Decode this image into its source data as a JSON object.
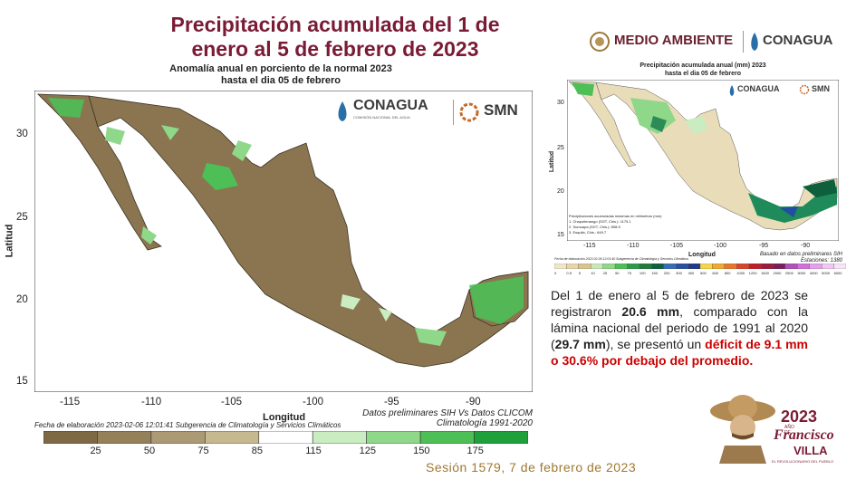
{
  "slide": {
    "title_line1": "Precipitación acumulada del 1 de",
    "title_line2": "enero al 5 de febrero de 2023",
    "session": "Sesión 1579, 7 de febrero de 2023"
  },
  "header_logos": {
    "medio_ambiente": "MEDIO AMBIENTE",
    "conagua": "CONAGUA"
  },
  "main_map": {
    "title_line1": "Anomalía anual en porciento de la normal 2023",
    "title_line2": "hasta el dia 05 de febrero",
    "logo_conagua": "CONAGUA",
    "logo_conagua_sub": "COMISIÓN NACIONAL DEL AGUA",
    "logo_smn": "SMN",
    "y_label": "Latitud",
    "x_label": "Longitud",
    "y_ticks": [
      "30",
      "25",
      "20",
      "15"
    ],
    "x_ticks": [
      "-115",
      "-110",
      "-105",
      "-100",
      "-95",
      "-90"
    ],
    "footnote": "Fecha de elaboración 2023-02-06 12:01:41 Subgerencia de Climatología y Servicios Climáticos",
    "credits_line1": "Datos preliminares SIH Vs Datos CLICOM",
    "credits_line2": "Climatología 1991-2020",
    "legend_labels": [
      "25",
      "50",
      "75",
      "85",
      "115",
      "125",
      "150",
      "175"
    ],
    "legend_colors": [
      "#7d6a45",
      "#94815a",
      "#ab9a73",
      "#c7b98f",
      "#ffffff",
      "#c9ecc0",
      "#8fd88a",
      "#4dbf56",
      "#1fa03a"
    ]
  },
  "small_map": {
    "title_line1": "Precipitación acumulada anual (mm) 2023",
    "title_line2": "hasta el dia 05 de febrero",
    "logo_conagua": "CONAGUA",
    "logo_smn": "SMN",
    "y_label": "Latitud",
    "x_label": "Longitud",
    "y_ticks": [
      "30",
      "25",
      "20",
      "15"
    ],
    "x_ticks": [
      "-115",
      "-110",
      "-105",
      "-100",
      "-95",
      "-90"
    ],
    "inset_title": "Precipitaciones acumuladas máximas en milímetros (mm)",
    "inset_items": [
      "1. Chapultenango (SGT, Chis.): 1175.1",
      "2. Sumuapa (SGT, Chis.): 898.5",
      "3. Esquila, Chis.: 649.7"
    ],
    "credits_line1": "Basado en datos preliminares SIH",
    "credits_line2": "Estaciones: 1380",
    "footnote": "Fecha de elaboración 2023-02-06 12:01:40 Subgerencia de Climatología y Servicios Climáticos",
    "legend_labels": [
      "0",
      "0.5",
      "5",
      "10",
      "25",
      "50",
      "75",
      "100",
      "150",
      "200",
      "300",
      "400",
      "500",
      "600",
      "800",
      "1000",
      "1200",
      "1500",
      "2000",
      "2500",
      "3000",
      "4000",
      "5000",
      "6000"
    ]
  },
  "summary": {
    "p1": "Del 1 de enero al 5 de febrero de 2023 se registraron ",
    "v1": "20.6 mm",
    "p2": ", comparado con la lámina nacional del periodo de 1991 al 2020 (",
    "v2": "29.7 mm",
    "p3": "), se presentó un ",
    "v3": "déficit de 9.1 mm o 30.6% por debajo del promedio."
  },
  "villa": {
    "year": "2023",
    "sub": "AÑO DE",
    "name1": "Francisco",
    "name2": "VILLA",
    "motto": "EL REVOLUCIONARIO DEL PUEBLO"
  }
}
